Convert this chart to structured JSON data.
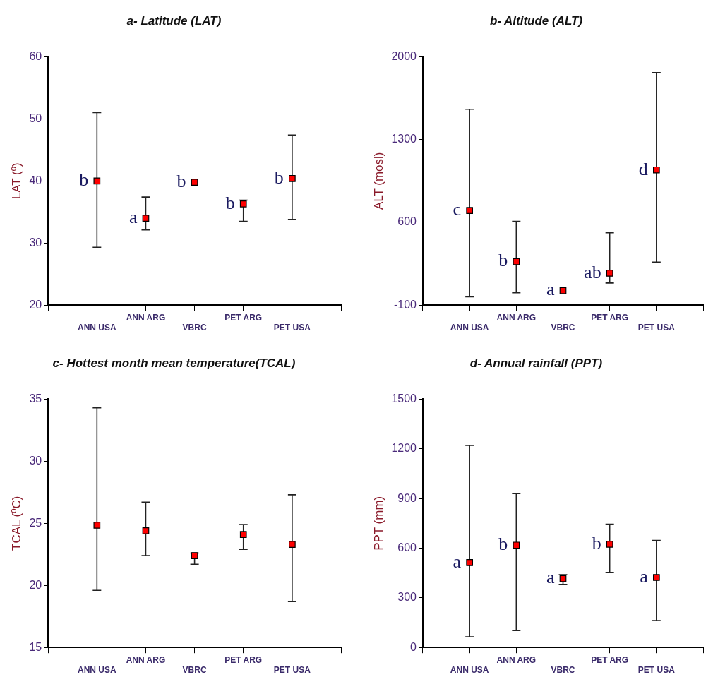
{
  "chart_data": [
    {
      "type": "scatter",
      "title": "a- Latitude (LAT)",
      "ylabel": "LAT (º)",
      "categories": [
        "ANN USA",
        "ANN ARG",
        "VBRC",
        "PET ARG",
        "PET USA"
      ],
      "values": [
        40,
        34,
        39.8,
        36.3,
        40.4
      ],
      "errors": [
        [
          29.3,
          51
        ],
        [
          32.1,
          37.4
        ],
        null,
        [
          33.5,
          36.9
        ],
        [
          33.8,
          47.4
        ]
      ],
      "color": "#ff0000",
      "marker": "square",
      "ylim": [
        20,
        60
      ],
      "yticks": [
        20,
        30,
        40,
        50,
        60
      ],
      "annotations": [
        {
          "text": "b",
          "x": "ANN USA",
          "y": 40
        },
        {
          "text": "a",
          "x": "ANN ARG",
          "y": 34
        },
        {
          "text": "b",
          "x": "VBRC",
          "y": 39.8
        },
        {
          "text": "b",
          "x": "PET ARG",
          "y": 36.3
        },
        {
          "text": "b",
          "x": "PET USA",
          "y": 40.4
        }
      ]
    },
    {
      "type": "scatter",
      "title": "b- Altitude (ALT)",
      "ylabel": "ALT (mosl)",
      "categories": [
        "ANN USA",
        "ANN ARG",
        "VBRC",
        "PET ARG",
        "PET USA"
      ],
      "values": [
        700,
        268,
        23,
        170,
        1043
      ],
      "errors": [
        [
          -30,
          1556
        ],
        [
          4,
          608
        ],
        null,
        [
          87,
          512
        ],
        [
          263,
          1866
        ]
      ],
      "color": "#ff0000",
      "marker": "square",
      "ylim": [
        -100,
        2000
      ],
      "yticks": [
        -100,
        600,
        1300,
        2000
      ],
      "annotations": [
        {
          "text": "c",
          "x": "ANN USA",
          "y": 700
        },
        {
          "text": "b",
          "x": "ANN ARG",
          "y": 268
        },
        {
          "text": "a",
          "x": "VBRC",
          "y": 23
        },
        {
          "text": "ab",
          "x": "PET ARG",
          "y": 170
        },
        {
          "text": "d",
          "x": "PET USA",
          "y": 1043
        }
      ]
    },
    {
      "type": "scatter",
      "title": "c- Hottest month mean temperature(TCAL)",
      "ylabel": "TCAL (ºC)",
      "categories": [
        "ANN USA",
        "ANN ARG",
        "VBRC",
        "PET ARG",
        "PET USA"
      ],
      "values": [
        24.85,
        24.4,
        22.4,
        24.1,
        23.3
      ],
      "errors": [
        [
          19.6,
          34.3
        ],
        [
          22.4,
          26.7
        ],
        [
          21.7,
          22.6
        ],
        [
          22.9,
          24.9
        ],
        [
          18.7,
          27.3
        ]
      ],
      "color": "#ff0000",
      "marker": "square",
      "ylim": [
        15,
        35
      ],
      "yticks": [
        15,
        20,
        25,
        30,
        35
      ]
    },
    {
      "type": "scatter",
      "title": "d- Annual rainfall (PPT)",
      "ylabel": "PPT (mm)",
      "categories": [
        "ANN USA",
        "ANN ARG",
        "VBRC",
        "PET ARG",
        "PET USA"
      ],
      "values": [
        513,
        618,
        416,
        624,
        423
      ],
      "errors": [
        [
          65,
          1221
        ],
        [
          102,
          930
        ],
        [
          381,
          440
        ],
        [
          454,
          745
        ],
        [
          163,
          647
        ]
      ],
      "color": "#ff0000",
      "marker": "square",
      "ylim": [
        0,
        1500
      ],
      "yticks": [
        0,
        300,
        600,
        900,
        1200,
        1500
      ],
      "annotations": [
        {
          "text": "a",
          "x": "ANN USA",
          "y": 513
        },
        {
          "text": "b",
          "x": "ANN ARG",
          "y": 618
        },
        {
          "text": "a",
          "x": "VBRC",
          "y": 416
        },
        {
          "text": "b",
          "x": "PET ARG",
          "y": 624
        },
        {
          "text": "a",
          "x": "PET USA",
          "y": 423
        }
      ]
    }
  ]
}
